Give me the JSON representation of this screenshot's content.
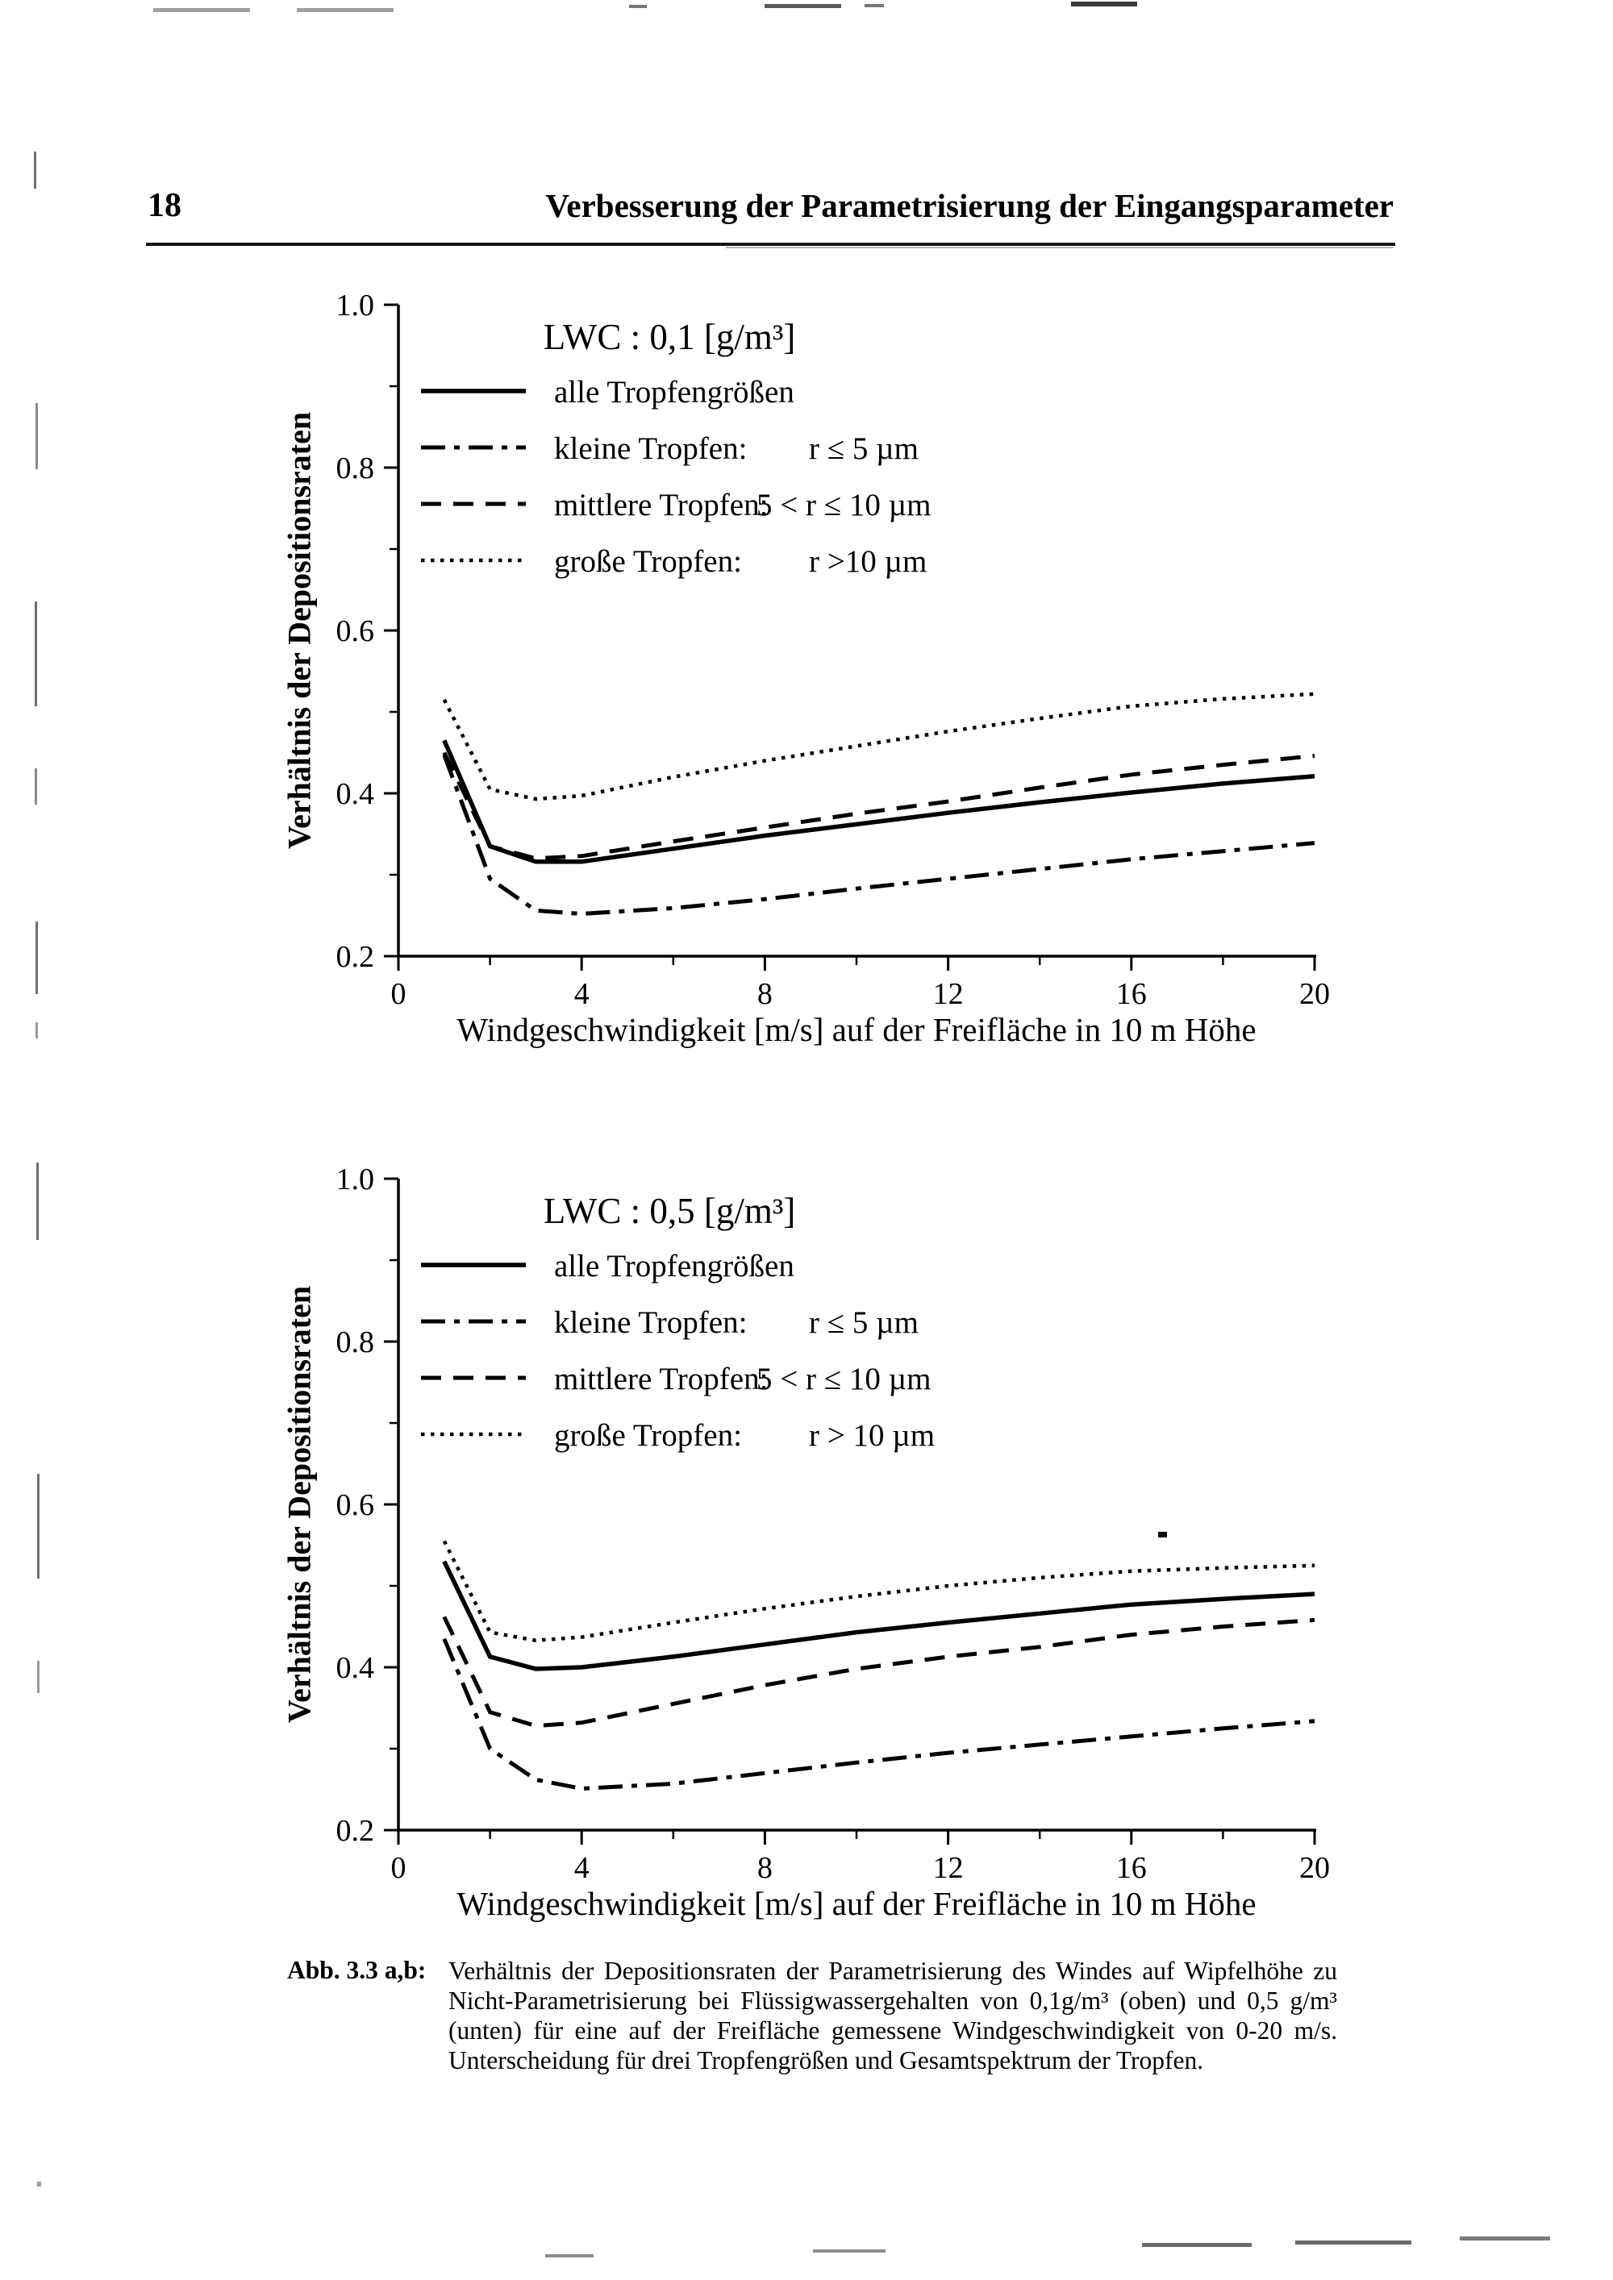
{
  "header": {
    "page_number": "18",
    "title": "Verbesserung der Parametrisierung der Eingangsparameter"
  },
  "chart_data": [
    {
      "type": "line",
      "title": "LWC : 0,1 [g/m³]",
      "xlabel": "Windgeschwindigkeit [m/s] auf der Freifläche in 10 m Höhe",
      "ylabel": "Verhältnis der Depositionsraten",
      "xlim": [
        0,
        20
      ],
      "ylim": [
        0.2,
        1.0
      ],
      "grid": false,
      "legend_position": "upper-left",
      "x_ticks": [
        0,
        4,
        8,
        12,
        16,
        20
      ],
      "x_minor_ticks": [
        2,
        6,
        10,
        14,
        18
      ],
      "y_ticks": [
        1.0,
        0.8,
        0.6,
        0.4,
        0.2
      ],
      "y_minor_ticks": [
        0.9,
        0.7,
        0.5,
        0.3
      ],
      "x_tick_labels": [
        "0",
        "4",
        "8",
        "12",
        "16",
        "20"
      ],
      "y_tick_labels": [
        "1.0",
        "0.8",
        "0.6",
        "0.4",
        "0.2"
      ],
      "x": [
        1,
        2,
        3,
        4,
        6,
        8,
        10,
        12,
        14,
        16,
        18,
        20
      ],
      "series": [
        {
          "name": "alle Tropfengrößen",
          "style": "solid",
          "values": [
            0.465,
            0.335,
            0.316,
            0.316,
            0.332,
            0.348,
            0.362,
            0.376,
            0.389,
            0.401,
            0.412,
            0.421
          ]
        },
        {
          "name": "kleine Tropfen: r ≤ 5 µm",
          "style": "dashdot",
          "values": [
            0.447,
            0.295,
            0.256,
            0.252,
            0.259,
            0.27,
            0.283,
            0.295,
            0.307,
            0.319,
            0.329,
            0.339
          ]
        },
        {
          "name": "mittlere Tropfen: 5 < r ≤ 10 µm",
          "style": "dashed",
          "values": [
            0.45,
            0.335,
            0.32,
            0.323,
            0.341,
            0.358,
            0.375,
            0.39,
            0.407,
            0.423,
            0.435,
            0.446
          ]
        },
        {
          "name": "große Tropfen: r > 10 µm",
          "style": "dotted",
          "values": [
            0.515,
            0.405,
            0.393,
            0.397,
            0.42,
            0.44,
            0.458,
            0.476,
            0.492,
            0.507,
            0.516,
            0.522
          ]
        }
      ],
      "legend": [
        {
          "label": "alle Tropfengrößen",
          "range": "",
          "style": "solid"
        },
        {
          "label": "kleine Tropfen:",
          "range": "r ≤ 5 µm",
          "style": "dashdot"
        },
        {
          "label": "mittlere Tropfen:",
          "range": "5 < r ≤ 10 µm",
          "style": "dashed"
        },
        {
          "label": "große Tropfen:",
          "range": "r >10 µm",
          "style": "dotted"
        }
      ]
    },
    {
      "type": "line",
      "title": "LWC : 0,5 [g/m³]",
      "xlabel": "Windgeschwindigkeit [m/s] auf der Freifläche in 10 m Höhe",
      "ylabel": "Verhältnis der Depositionsraten",
      "xlim": [
        0,
        20
      ],
      "ylim": [
        0.2,
        1.0
      ],
      "grid": false,
      "legend_position": "upper-left",
      "x_ticks": [
        0,
        4,
        8,
        12,
        16,
        20
      ],
      "x_minor_ticks": [
        2,
        6,
        10,
        14,
        18
      ],
      "y_ticks": [
        1.0,
        0.8,
        0.6,
        0.4,
        0.2
      ],
      "y_minor_ticks": [
        0.9,
        0.7,
        0.5,
        0.3
      ],
      "x_tick_labels": [
        "0",
        "4",
        "8",
        "12",
        "16",
        "20"
      ],
      "y_tick_labels": [
        "1.0",
        "0.8",
        "0.6",
        "0.4",
        "0.2"
      ],
      "x": [
        1,
        2,
        3,
        4,
        6,
        8,
        10,
        12,
        14,
        16,
        18,
        20
      ],
      "series": [
        {
          "name": "alle Tropfengrößen",
          "style": "solid",
          "values": [
            0.53,
            0.413,
            0.398,
            0.4,
            0.413,
            0.428,
            0.443,
            0.455,
            0.466,
            0.477,
            0.484,
            0.49
          ]
        },
        {
          "name": "kleine Tropfen: r ≤ 5 µm",
          "style": "dashdot",
          "values": [
            0.435,
            0.3,
            0.262,
            0.251,
            0.257,
            0.27,
            0.283,
            0.295,
            0.305,
            0.315,
            0.325,
            0.334
          ]
        },
        {
          "name": "mittlere Tropfen: 5 < r ≤ 10 µm",
          "style": "dashed",
          "values": [
            0.462,
            0.345,
            0.328,
            0.332,
            0.355,
            0.378,
            0.398,
            0.413,
            0.425,
            0.44,
            0.45,
            0.458
          ]
        },
        {
          "name": "große Tropfen: r > 10 µm",
          "style": "dotted",
          "values": [
            0.555,
            0.443,
            0.433,
            0.437,
            0.455,
            0.472,
            0.487,
            0.5,
            0.51,
            0.518,
            0.522,
            0.525
          ]
        }
      ],
      "legend": [
        {
          "label": "alle Tropfengrößen",
          "range": "",
          "style": "solid"
        },
        {
          "label": "kleine Tropfen:",
          "range": "r ≤ 5 µm",
          "style": "dashdot"
        },
        {
          "label": "mittlere Tropfen:",
          "range": "5 < r ≤ 10 µm",
          "style": "dashed"
        },
        {
          "label": "große Tropfen:",
          "range": "r > 10 µm",
          "style": "dotted"
        }
      ]
    }
  ],
  "caption": {
    "label": "Abb. 3.3 a,b:",
    "lines": [
      "Verhältnis der Depositionsraten der Parametrisierung des Windes auf Wipfelhöhe zu",
      "Nicht-Parametrisierung bei Flüssigwassergehalten von 0,1g/m³ (oben) und 0,5 g/m³",
      "(unten) für eine auf der Freifläche gemessene Windgeschwindigkeit von 0-20 m/s.",
      "Unterscheidung für drei Tropfengrößen und Gesamtspektrum der Tropfen."
    ]
  }
}
